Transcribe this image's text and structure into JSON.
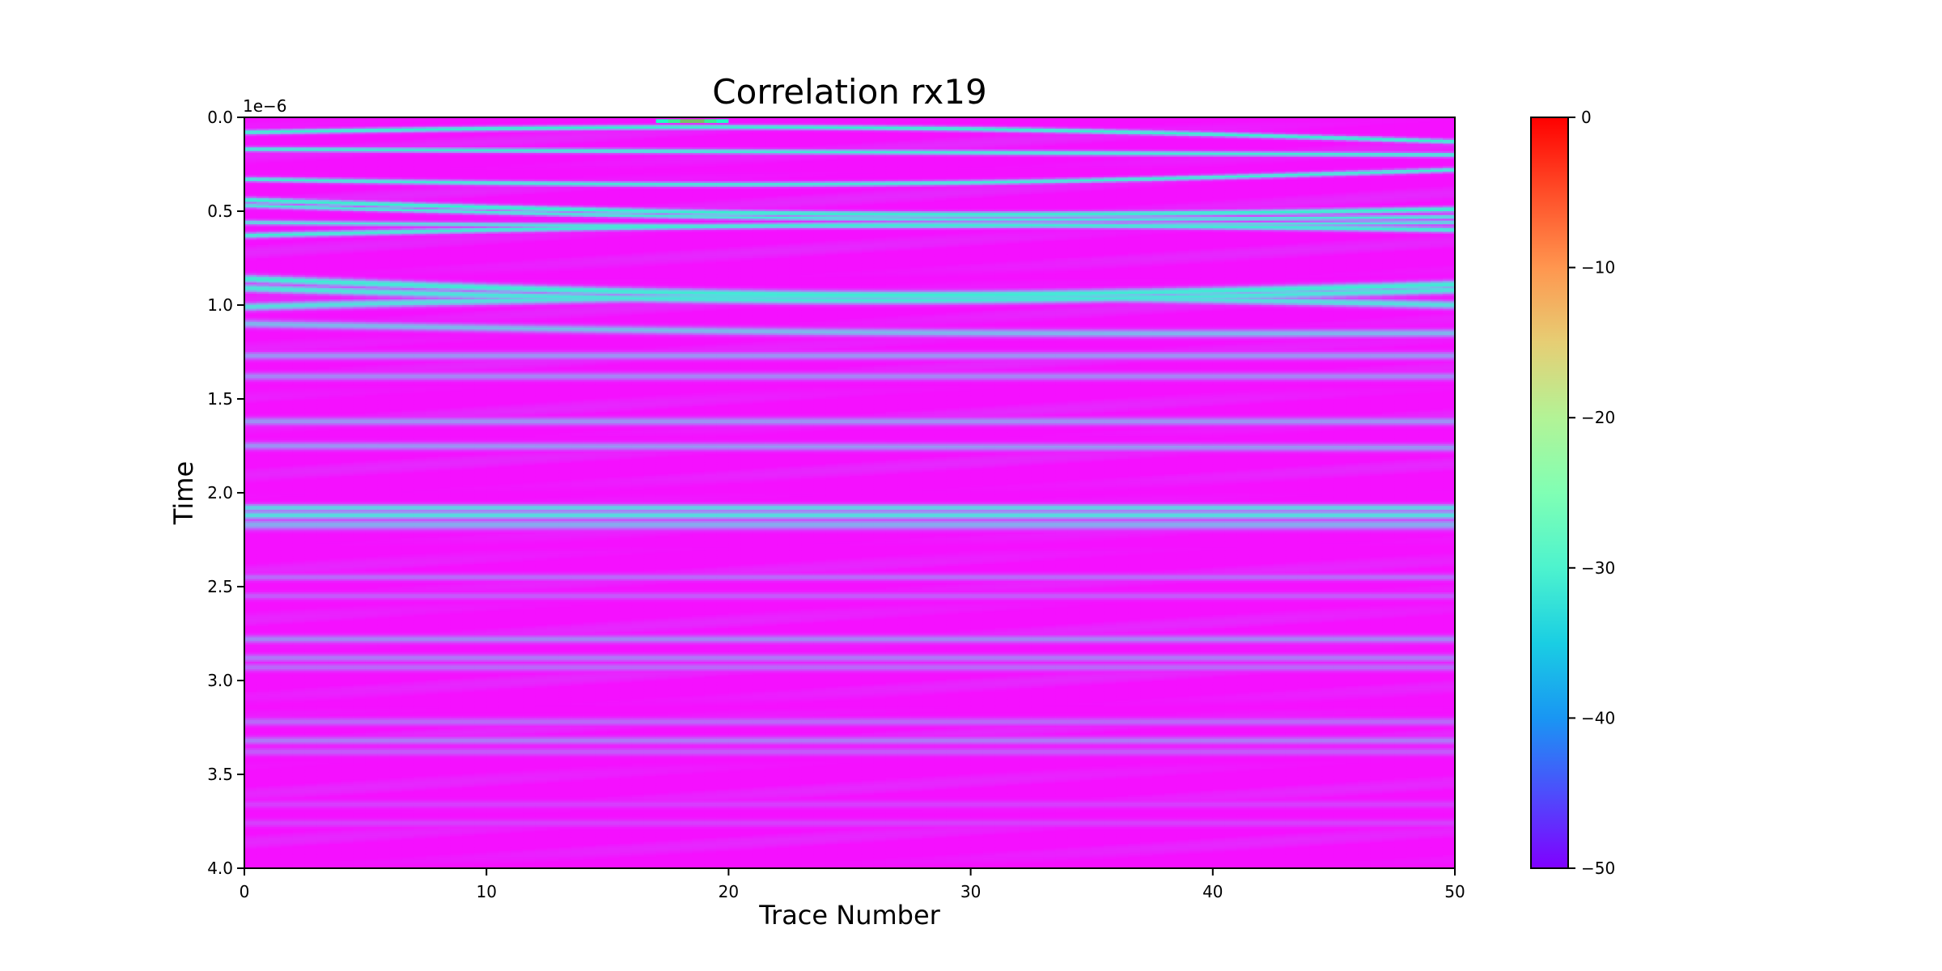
{
  "chart_data": {
    "type": "heatmap",
    "title": "Correlation rx19",
    "xlabel": "Trace Number",
    "ylabel": "Time",
    "y_offset_label": "1e−6",
    "xlim": [
      0,
      50
    ],
    "ylim": [
      4.0,
      0.0
    ],
    "x_ticks": [
      0,
      10,
      20,
      30,
      40,
      50
    ],
    "x_tick_labels": [
      "0",
      "10",
      "20",
      "30",
      "40",
      "50"
    ],
    "y_ticks": [
      0.0,
      0.5,
      1.0,
      1.5,
      2.0,
      2.5,
      3.0,
      3.5,
      4.0
    ],
    "y_tick_labels": [
      "0.0",
      "0.5",
      "1.0",
      "1.5",
      "2.0",
      "2.5",
      "3.0",
      "3.5",
      "4.0"
    ],
    "colormap": "rainbow",
    "colorbar": {
      "range": [
        -50,
        0
      ],
      "ticks": [
        0,
        -10,
        -20,
        -30,
        -40,
        -50
      ],
      "tick_labels": [
        "0",
        "−10",
        "−20",
        "−30",
        "−40",
        "−50"
      ]
    },
    "background_value": -49,
    "reflections": [
      {
        "t0": 0.08,
        "t50": 0.13,
        "curve": -0.05,
        "peak_x": 18.5,
        "value": -30,
        "width": 0.012
      },
      {
        "t0": 0.17,
        "t50": 0.2,
        "curve": 0.0,
        "peak_x": 25,
        "value": -31,
        "width": 0.012
      },
      {
        "t0": 0.33,
        "t50": 0.28,
        "curve": 0.05,
        "peak_x": 32,
        "value": -31,
        "width": 0.012
      },
      {
        "t0": 0.44,
        "t50": 0.49,
        "curve": 0.05,
        "peak_x": 32,
        "value": -30,
        "width": 0.014
      },
      {
        "t0": 0.47,
        "t50": 0.53,
        "curve": 0.04,
        "peak_x": 32,
        "value": -32,
        "width": 0.012
      },
      {
        "t0": 0.56,
        "t50": 0.56,
        "curve": 0.02,
        "peak_x": 32,
        "value": -33,
        "width": 0.012
      },
      {
        "t0": 0.63,
        "t50": 0.6,
        "curve": -0.04,
        "peak_x": 32,
        "value": -31,
        "width": 0.014
      },
      {
        "t0": 0.86,
        "t50": 0.89,
        "curve": 0.07,
        "peak_x": 30,
        "value": -31,
        "width": 0.02
      },
      {
        "t0": 0.91,
        "t50": 0.92,
        "curve": 0.06,
        "peak_x": 30,
        "value": -32,
        "width": 0.02
      },
      {
        "t0": 1.01,
        "t50": 1.0,
        "curve": -0.05,
        "peak_x": 30,
        "value": -33,
        "width": 0.02
      },
      {
        "t0": 1.1,
        "t50": 1.15,
        "curve": 0.02,
        "peak_x": 30,
        "value": -37,
        "width": 0.02
      },
      {
        "t0": 1.27,
        "t50": 1.27,
        "curve": 0.0,
        "peak_x": 25,
        "value": -40,
        "width": 0.02
      },
      {
        "t0": 1.38,
        "t50": 1.38,
        "curve": 0.0,
        "peak_x": 25,
        "value": -41,
        "width": 0.02
      },
      {
        "t0": 1.62,
        "t50": 1.62,
        "curve": 0.0,
        "peak_x": 25,
        "value": -40,
        "width": 0.02
      },
      {
        "t0": 1.75,
        "t50": 1.76,
        "curve": 0.0,
        "peak_x": 25,
        "value": -40,
        "width": 0.02
      },
      {
        "t0": 2.08,
        "t50": 2.08,
        "curve": 0.0,
        "peak_x": 25,
        "value": -34,
        "width": 0.018
      },
      {
        "t0": 2.12,
        "t50": 2.12,
        "curve": 0.0,
        "peak_x": 25,
        "value": -33,
        "width": 0.02
      },
      {
        "t0": 2.17,
        "t50": 2.17,
        "curve": 0.0,
        "peak_x": 25,
        "value": -38,
        "width": 0.025
      },
      {
        "t0": 2.45,
        "t50": 2.45,
        "curve": 0.0,
        "peak_x": 40,
        "value": -43,
        "width": 0.018
      },
      {
        "t0": 2.55,
        "t50": 2.55,
        "curve": 0.0,
        "peak_x": 25,
        "value": -44,
        "width": 0.018
      },
      {
        "t0": 2.78,
        "t50": 2.78,
        "curve": 0.0,
        "peak_x": 40,
        "value": -41,
        "width": 0.02
      },
      {
        "t0": 2.88,
        "t50": 2.88,
        "curve": 0.0,
        "peak_x": 40,
        "value": -42,
        "width": 0.02
      },
      {
        "t0": 2.93,
        "t50": 2.93,
        "curve": 0.0,
        "peak_x": 25,
        "value": -43,
        "width": 0.02
      },
      {
        "t0": 3.22,
        "t50": 3.22,
        "curve": 0.0,
        "peak_x": 40,
        "value": -43,
        "width": 0.02
      },
      {
        "t0": 3.32,
        "t50": 3.32,
        "curve": 0.0,
        "peak_x": 40,
        "value": -42,
        "width": 0.02
      },
      {
        "t0": 3.38,
        "t50": 3.38,
        "curve": 0.0,
        "peak_x": 25,
        "value": -44,
        "width": 0.02
      },
      {
        "t0": 3.66,
        "t50": 3.66,
        "curve": 0.0,
        "peak_x": 25,
        "value": -46,
        "width": 0.02
      },
      {
        "t0": 3.76,
        "t50": 3.76,
        "curve": 0.0,
        "peak_x": 25,
        "value": -46,
        "width": 0.02
      }
    ],
    "peak": {
      "x": 18.5,
      "t": 0.02,
      "value": 0
    }
  }
}
